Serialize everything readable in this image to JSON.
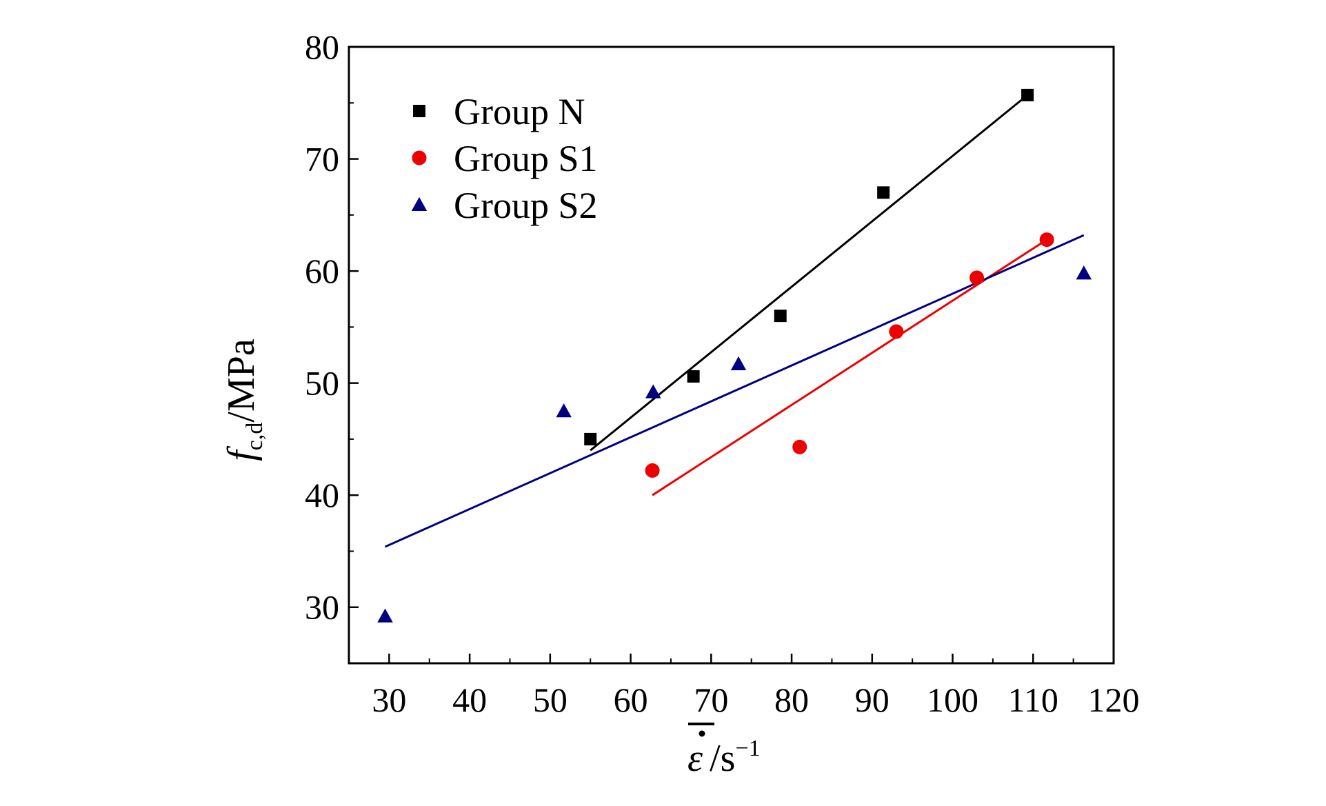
{
  "chart_data": {
    "type": "scatter",
    "title": "",
    "xlabel": {
      "symbol": "ε",
      "unit": "/s",
      "unit_exp": "−1"
    },
    "ylabel": {
      "symbol": "f",
      "sub": "c,d",
      "unit": "/MPa"
    },
    "xlim": [
      25,
      120
    ],
    "ylim": [
      25,
      80
    ],
    "xticks": [
      30,
      40,
      50,
      60,
      70,
      80,
      90,
      100,
      110,
      120
    ],
    "yticks": [
      30,
      40,
      50,
      60,
      70,
      80
    ],
    "grid": false,
    "legend_position": "top-left",
    "series": [
      {
        "name": "Group N",
        "marker": "square",
        "color": "#000000",
        "points": [
          [
            55.0,
            45.0
          ],
          [
            67.8,
            50.6
          ],
          [
            78.6,
            56.0
          ],
          [
            91.4,
            67.0
          ],
          [
            109.3,
            75.7
          ]
        ],
        "fit": [
          [
            55.0,
            44.0
          ],
          [
            109.3,
            75.7
          ]
        ]
      },
      {
        "name": "Group S1",
        "marker": "circle",
        "color": "#ee0000",
        "points": [
          [
            62.7,
            42.2
          ],
          [
            81.0,
            44.3
          ],
          [
            93.0,
            54.6
          ],
          [
            103.0,
            59.4
          ],
          [
            111.7,
            62.8
          ]
        ],
        "fit": [
          [
            62.7,
            40.0
          ],
          [
            111.7,
            62.8
          ]
        ]
      },
      {
        "name": "Group S2",
        "marker": "triangle",
        "color": "#000080",
        "points": [
          [
            29.5,
            29.2
          ],
          [
            51.7,
            47.5
          ],
          [
            62.8,
            49.2
          ],
          [
            73.4,
            51.7
          ],
          [
            116.3,
            59.8
          ]
        ],
        "fit": [
          [
            29.5,
            35.4
          ],
          [
            116.3,
            63.2
          ]
        ]
      }
    ]
  }
}
